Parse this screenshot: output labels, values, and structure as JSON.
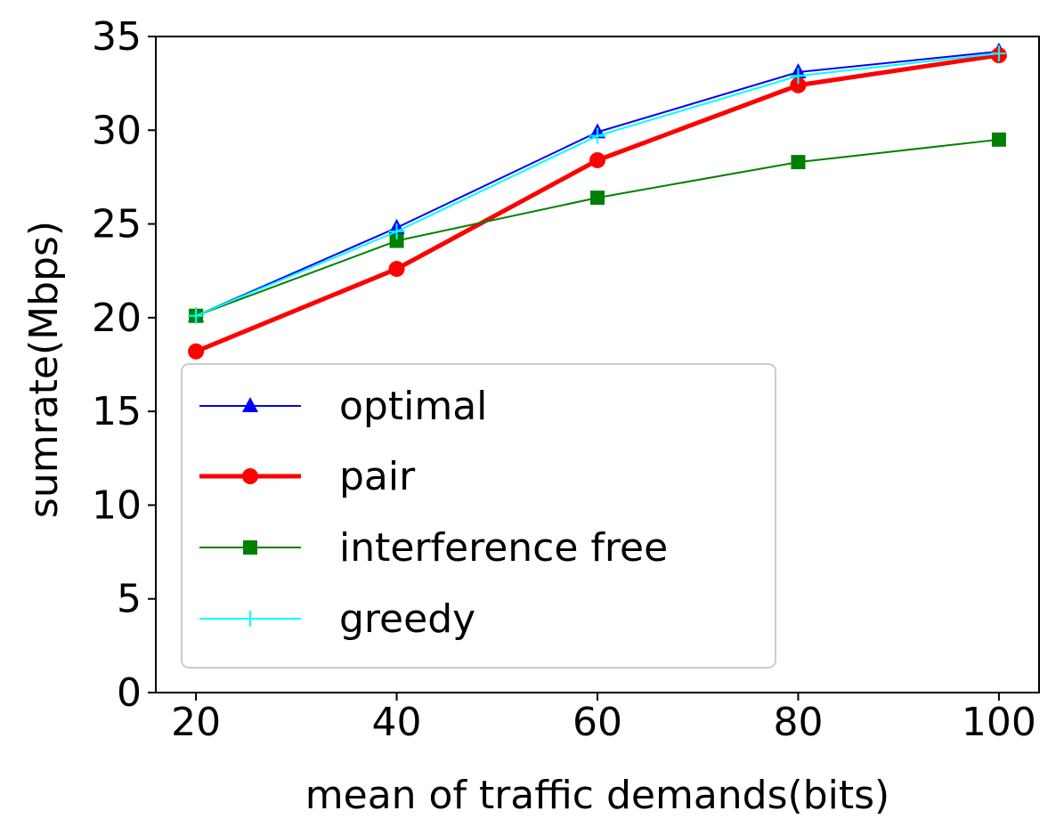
{
  "chart_data": {
    "type": "line",
    "title": "",
    "xlabel": "mean of traffic demands(bits)",
    "ylabel": "sumrate(Mbps)",
    "x": [
      20,
      40,
      60,
      80,
      100
    ],
    "xticks": [
      "20",
      "40",
      "60",
      "80",
      "100"
    ],
    "yticks": [
      "0",
      "5",
      "10",
      "15",
      "20",
      "25",
      "30",
      "35"
    ],
    "xlim": [
      16,
      104
    ],
    "ylim": [
      0,
      35
    ],
    "grid": false,
    "legend_position": "lower-left",
    "series": [
      {
        "name": "optimal",
        "values": [
          20.1,
          24.8,
          29.9,
          33.1,
          34.2
        ],
        "color": "#0000ff",
        "marker": "triangle",
        "line_width": 2
      },
      {
        "name": "pair",
        "values": [
          18.2,
          22.6,
          28.4,
          32.4,
          34.0
        ],
        "color": "#ff0000",
        "marker": "circle",
        "line_width": 5
      },
      {
        "name": "interference free",
        "values": [
          20.1,
          24.1,
          26.4,
          28.3,
          29.5
        ],
        "color": "#008000",
        "marker": "square",
        "line_width": 2
      },
      {
        "name": "greedy",
        "values": [
          20.1,
          24.6,
          29.7,
          32.9,
          34.1
        ],
        "color": "#00ffff",
        "marker": "plus",
        "line_width": 2
      }
    ]
  }
}
